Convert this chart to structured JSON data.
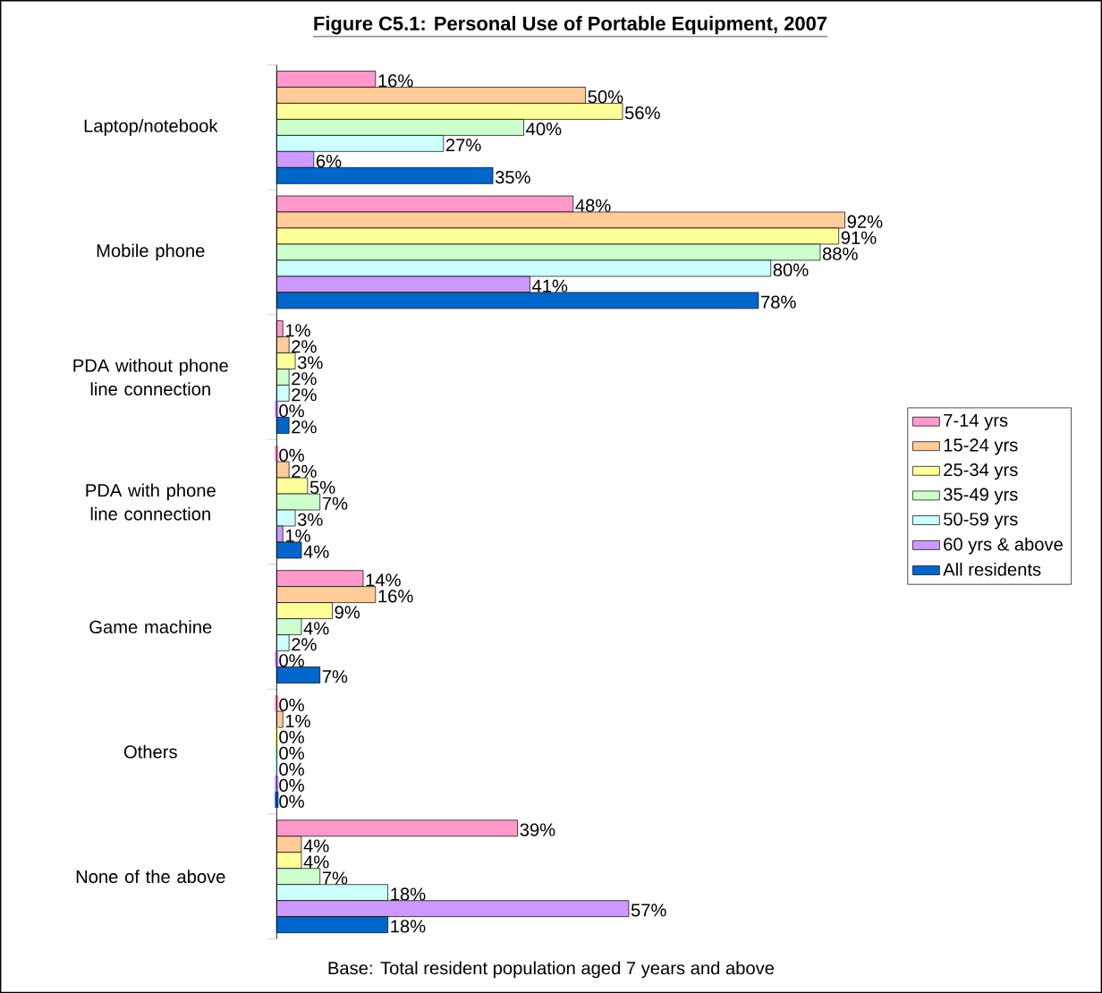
{
  "chart_data": {
    "type": "bar",
    "orientation": "horizontal",
    "title": "**Figure C5.1:  Personal Use of Portable Equipment, 2007**",
    "annotations": [
      "Base: Total resident population aged 7 years and above"
    ],
    "categories": [
      "Laptop/notebook",
      "Mobile phone",
      "PDA without phone line connection",
      "PDA with phone line connection",
      "Game machine",
      "Others",
      "None of the above"
    ],
    "series": [
      {
        "name": "7-14 yrs",
        "color": "#ff99cc",
        "values": [
          16,
          48,
          1,
          0,
          14,
          0,
          39
        ],
        "value_labels": [
          "16%",
          "48%",
          "1%",
          "0%",
          "14%",
          "0%",
          "39%"
        ]
      },
      {
        "name": "15-24 yrs",
        "color": "#ffcc99",
        "values": [
          50,
          92,
          2,
          2,
          16,
          1,
          4
        ],
        "value_labels": [
          "50%",
          "92%",
          "2%",
          "2%",
          "16%",
          "1%",
          "4%"
        ]
      },
      {
        "name": "25-34 yrs",
        "color": "#ffff99",
        "values": [
          56,
          91,
          3,
          5,
          9,
          0,
          4
        ],
        "value_labels": [
          "56%",
          "91%",
          "3%",
          "5%",
          "9%",
          "0%",
          "4%"
        ]
      },
      {
        "name": "35-49 yrs",
        "color": "#ccffcc",
        "values": [
          40,
          88,
          2,
          7,
          4,
          0,
          7
        ],
        "value_labels": [
          "40%",
          "88%",
          "2%",
          "7%",
          "4%",
          "0%",
          "7%"
        ]
      },
      {
        "name": "50-59 yrs",
        "color": "#ccffff",
        "values": [
          27,
          80,
          2,
          3,
          2,
          0,
          18
        ],
        "value_labels": [
          "27%",
          "80%",
          "2%",
          "3%",
          "2%",
          "0%",
          "18%"
        ]
      },
      {
        "name": "60 yrs & above",
        "color": "#cc99ff",
        "values": [
          6,
          41,
          0,
          1,
          0,
          0,
          57
        ],
        "value_labels": [
          "6%",
          "41%",
          "0%",
          "1%",
          "0%",
          "0%",
          "57%"
        ]
      },
      {
        "name": "All residents",
        "color": "#0066cc",
        "values": [
          35,
          78,
          2,
          4,
          7,
          0,
          18
        ],
        "value_labels": [
          "35%",
          "78%",
          "2%",
          "4%",
          "7%",
          "0%",
          "18%"
        ]
      }
    ],
    "legend": "right"
  }
}
